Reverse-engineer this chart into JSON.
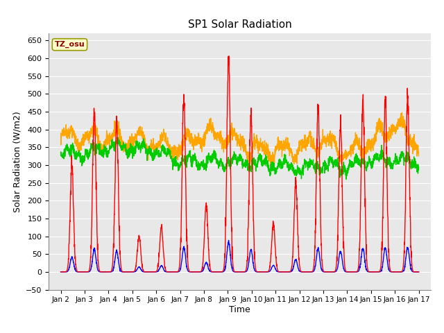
{
  "title": "SP1 Solar Radiation",
  "xlabel": "Time",
  "ylabel": "Solar Radiation (W/m2)",
  "ylim": [
    -50,
    670
  ],
  "xlim": [
    1.5,
    17.5
  ],
  "xtick_labels": [
    "Jan 2",
    "Jan 3",
    "Jan 4",
    "Jan 5",
    "Jan 6",
    "Jan 7",
    "Jan 8",
    "Jan 9",
    "Jan 10",
    "Jan 11",
    "Jan 12",
    "Jan 13",
    "Jan 14",
    "Jan 15",
    "Jan 16",
    "Jan 17"
  ],
  "xtick_positions": [
    2,
    3,
    4,
    5,
    6,
    7,
    8,
    9,
    10,
    11,
    12,
    13,
    14,
    15,
    16,
    17
  ],
  "ytick_positions": [
    -50,
    0,
    50,
    100,
    150,
    200,
    250,
    300,
    350,
    400,
    450,
    500,
    550,
    600,
    650
  ],
  "colors": {
    "sp1_SWin": "#FF0000",
    "sp1_SWout": "#0000FF",
    "sp1_LWin": "#00CC00",
    "sp1_LWout": "#FFA500"
  },
  "annotation_text": "TZ_osu",
  "annotation_box_color": "#FFFFCC",
  "annotation_border_color": "#999900",
  "annotation_text_color": "#880000",
  "bg_color": "#FFFFFF",
  "plot_bg_color": "#E8E8E8",
  "grid_color": "#FFFFFF",
  "linewidth": 1.0,
  "peaks_SWin": [
    300,
    455,
    420,
    100,
    125,
    490,
    190,
    605,
    445,
    135,
    250,
    465,
    420,
    475,
    483,
    490,
    520
  ],
  "swout_ratio": 0.14,
  "lwin_envelope": [
    335,
    330,
    350,
    350,
    340,
    310,
    310,
    310,
    305,
    300,
    290,
    300,
    295,
    315,
    315,
    310,
    310
  ],
  "lwout_envelope": [
    380,
    375,
    375,
    370,
    360,
    350,
    390,
    380,
    345,
    340,
    345,
    370,
    330,
    365,
    415,
    360,
    335
  ]
}
